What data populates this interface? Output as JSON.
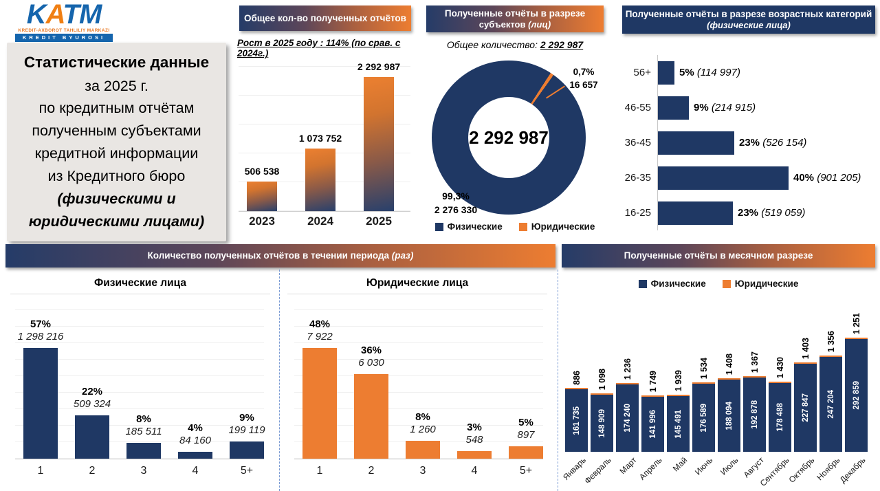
{
  "logo": {
    "k": "K",
    "a": "A",
    "tm": "TM",
    "caption1": "KREDIT-AXBOROT TAHLILIY MARKAZI",
    "caption2": "KREDIT BYUROSI"
  },
  "title_card": {
    "line1": "Статистические данные",
    "line2": "за 2025 г.",
    "line3": "по кредитным отчётам",
    "line4": "полученным субъектами",
    "line5": "кредитной информации",
    "line6": "из Кредитного бюро",
    "line7": "(физическими и",
    "line8": "юридическими лицами)"
  },
  "colors": {
    "navy": "#1F3864",
    "orange": "#ED7D31"
  },
  "yearly": {
    "header": "Общее кол-во полученных отчётов",
    "subtitle": "Рост в 2025 году : 114% (по срав. с 2024г.)"
  },
  "subjects": {
    "header_line1": "Полученные отчёты в разрезе",
    "header_line2": "субъектов",
    "header_line2_italic": "(лиц)",
    "subtitle_label": "Общее количество:",
    "subtitle_value": "2 292 987",
    "center_value": "2 292 987",
    "small_pct": "0,7%",
    "small_value": "16 657",
    "big_pct": "99,3%",
    "big_value": "2 276 330",
    "legend": [
      "Физические",
      "Юридические"
    ]
  },
  "age": {
    "header": "Полученные отчёты в разрезе возрастных категорий",
    "header_italic": "(физические лица)"
  },
  "period": {
    "banner": "Количество полученных отчётов в течении периода",
    "banner_italic": "(раз)",
    "fiz_title": "Физические лица",
    "yur_title": "Юридические лица"
  },
  "monthly": {
    "banner": "Полученные отчёты в месячном разрезе",
    "legend": [
      "Физические",
      "Юридические"
    ]
  },
  "chart_data": [
    {
      "id": "yearly_totals",
      "type": "bar",
      "title": "Общее кол-во полученных отчётов",
      "subtitle": "Рост в 2025 году : 114% (по срав. с 2024г.)",
      "categories": [
        "2023",
        "2024",
        "2025"
      ],
      "values": [
        506538,
        1073752,
        2292987
      ],
      "labels": [
        "506 538",
        "1 073 752",
        "2 292 987"
      ],
      "ylim": [
        0,
        2500000
      ],
      "grid": true
    },
    {
      "id": "subjects_donut",
      "type": "pie",
      "title": "Полученные отчёты в разрезе субъектов (лиц)",
      "center_label": "2 292 987",
      "slices": [
        {
          "name": "Физические",
          "value": 2276330,
          "pct": "99,3%",
          "label": "2 276 330",
          "color": "#1F3864"
        },
        {
          "name": "Юридические",
          "value": 16657,
          "pct": "0,7%",
          "label": "16 657",
          "color": "#ED7D31"
        }
      ],
      "legend_position": "bottom"
    },
    {
      "id": "age_categories",
      "type": "bar",
      "orientation": "horizontal",
      "title": "Полученные отчёты в разрезе возрастных категорий (физические лица)",
      "categories": [
        "56+",
        "46-55",
        "36-45",
        "26-35",
        "16-25"
      ],
      "values": [
        114997,
        214915,
        526154,
        901205,
        519059
      ],
      "pcts": [
        "5%",
        "9%",
        "23%",
        "40%",
        "23%"
      ],
      "labels": [
        "(114 997)",
        "(214 915)",
        "(526 154)",
        "(901 205)",
        "(519 059)"
      ],
      "color": "#1F3864"
    },
    {
      "id": "period_fiz",
      "type": "bar",
      "title": "Физические лица",
      "categories": [
        "1",
        "2",
        "3",
        "4",
        "5+"
      ],
      "values": [
        1298216,
        509324,
        185511,
        84160,
        199119
      ],
      "pcts": [
        "57%",
        "22%",
        "8%",
        "4%",
        "9%"
      ],
      "labels": [
        "1 298 216",
        "509 324",
        "185 511",
        "84 160",
        "199 119"
      ],
      "color": "#1F3864",
      "grid": true
    },
    {
      "id": "period_yur",
      "type": "bar",
      "title": "Юридические лица",
      "categories": [
        "1",
        "2",
        "3",
        "4",
        "5+"
      ],
      "values": [
        7922,
        6030,
        1260,
        548,
        897
      ],
      "pcts": [
        "48%",
        "36%",
        "8%",
        "3%",
        "5%"
      ],
      "labels": [
        "7 922",
        "6 030",
        "1 260",
        "548",
        "897"
      ],
      "color": "#ED7D31",
      "grid": true
    },
    {
      "id": "monthly",
      "type": "bar",
      "stacked": true,
      "title": "Полученные отчёты в месячном разрезе",
      "categories": [
        "Январь",
        "Февраль",
        "Март",
        "Апрель",
        "Май",
        "Июнь",
        "Июль",
        "Август",
        "Сентябрь",
        "Октябрь",
        "Ноябрь",
        "Декабрь"
      ],
      "series": [
        {
          "name": "Физические",
          "color": "#1F3864",
          "values": [
            161735,
            148909,
            174240,
            141996,
            145491,
            176589,
            188094,
            192878,
            178488,
            227847,
            247204,
            292859
          ],
          "labels": [
            "161 735",
            "148 909",
            "174 240",
            "141 996",
            "145 491",
            "176 589",
            "188 094",
            "192 878",
            "178 488",
            "227 847",
            "247 204",
            "292 859"
          ]
        },
        {
          "name": "Юридические",
          "color": "#ED7D31",
          "values": [
            886,
            1098,
            1236,
            1749,
            1939,
            1534,
            1408,
            1367,
            1430,
            1403,
            1356,
            1251
          ],
          "labels": [
            "886",
            "1 098",
            "1 236",
            "1 749",
            "1 939",
            "1 534",
            "1 408",
            "1 367",
            "1 430",
            "1 403",
            "1 356",
            "1 251"
          ]
        }
      ],
      "legend_position": "top"
    }
  ]
}
